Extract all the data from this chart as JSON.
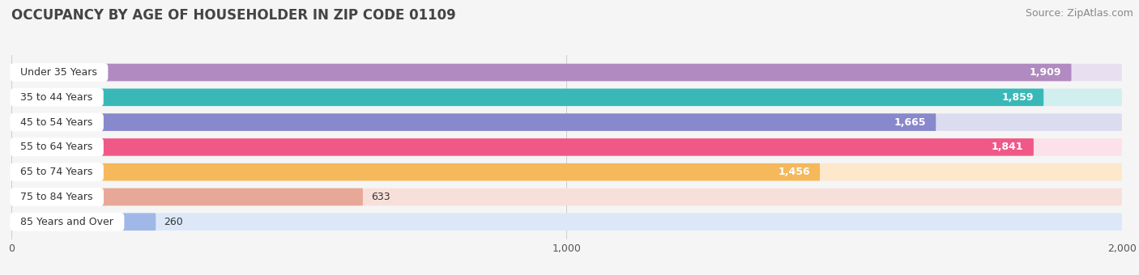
{
  "title": "OCCUPANCY BY AGE OF HOUSEHOLDER IN ZIP CODE 01109",
  "source": "Source: ZipAtlas.com",
  "categories": [
    "Under 35 Years",
    "35 to 44 Years",
    "45 to 54 Years",
    "55 to 64 Years",
    "65 to 74 Years",
    "75 to 84 Years",
    "85 Years and Over"
  ],
  "values": [
    1909,
    1859,
    1665,
    1841,
    1456,
    633,
    260
  ],
  "bar_colors": [
    "#b08ac0",
    "#3ab8b8",
    "#8888cc",
    "#f05888",
    "#f5b85a",
    "#e8a898",
    "#a0b8e8"
  ],
  "bar_bg_colors": [
    "#e8e0f0",
    "#d0efee",
    "#dcdcf0",
    "#fce0ea",
    "#fde8cc",
    "#f8e0da",
    "#dce8f8"
  ],
  "xlim": [
    0,
    2000
  ],
  "xticks": [
    0,
    1000,
    2000
  ],
  "value_label_colors": [
    "white",
    "white",
    "white",
    "white",
    "white",
    "black",
    "black"
  ],
  "title_fontsize": 12,
  "source_fontsize": 9,
  "bar_height": 0.7,
  "background_color": "#f5f5f5"
}
